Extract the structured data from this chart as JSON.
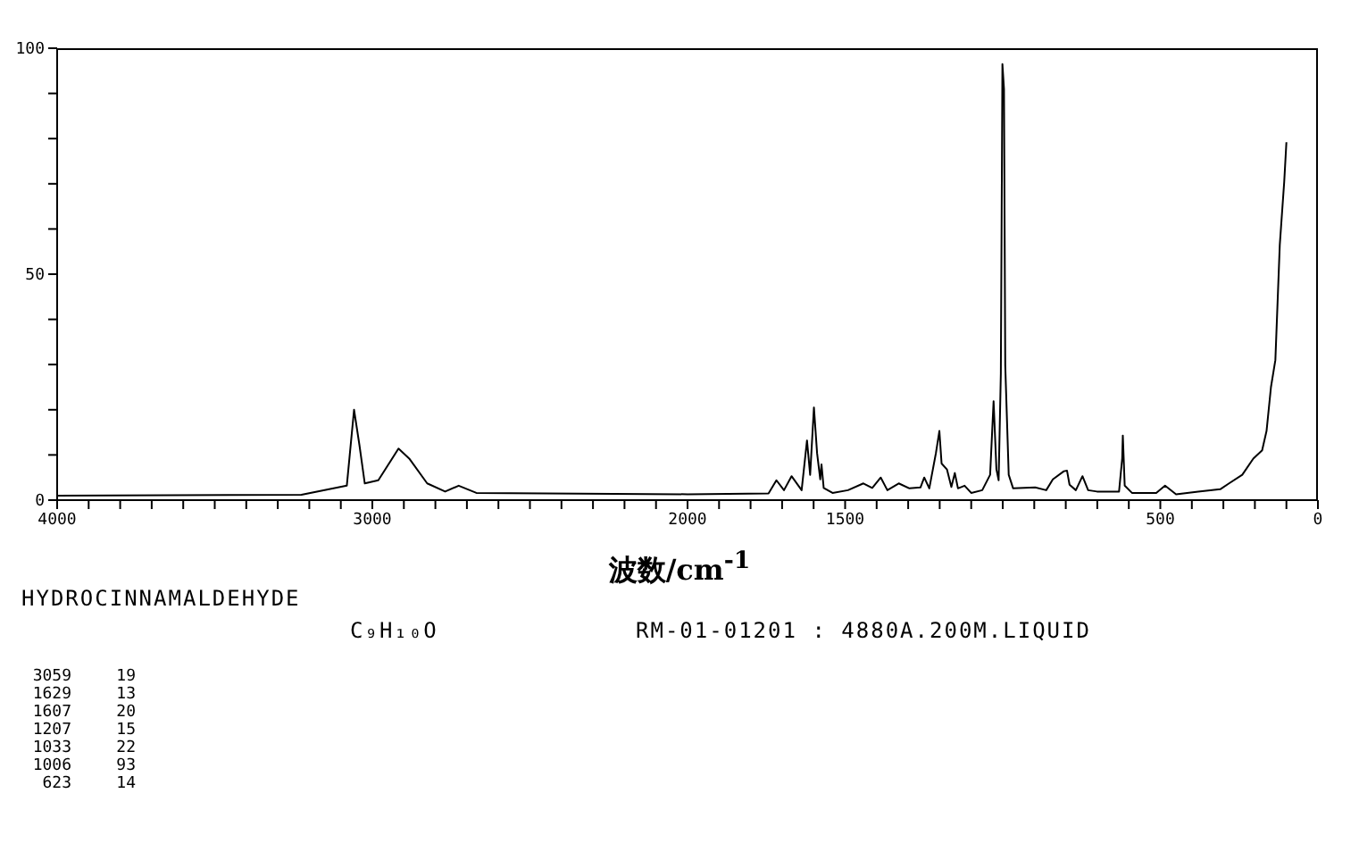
{
  "chart_data": {
    "type": "line",
    "title": "HYDROCINNAMALDEHYDE",
    "subtitle": "C₉H₁₀O",
    "xlabel": "波数/cm$^{-1}$",
    "annotations": [
      "RM-01-01201 : 4880A.200M.LIQUID",
      "3059 19",
      "1629 13",
      "1607 20",
      "1207 15",
      "1033 22",
      "1006 93",
      "623 14"
    ],
    "x": [
      4000,
      3225,
      3081,
      3058,
      3041,
      3024,
      2981,
      2917,
      2883,
      2826,
      2769,
      2726,
      2670,
      2000,
      1743,
      1718,
      1694,
      1670,
      1638,
      1621,
      1611,
      1599,
      1589,
      1579,
      1575,
      1568,
      1540,
      1491,
      1442,
      1414,
      1387,
      1366,
      1330,
      1296,
      1261,
      1249,
      1233,
      1212,
      1201,
      1194,
      1177,
      1163,
      1152,
      1142,
      1121,
      1100,
      1065,
      1040,
      1029,
      1020,
      1013,
      1006,
      1001,
      996,
      992,
      981,
      967,
      897,
      862,
      841,
      806,
      796,
      788,
      768,
      747,
      729,
      701,
      631,
      621,
      619,
      613,
      590,
      513,
      485,
      450,
      380,
      310,
      282,
      240,
      205,
      177,
      163,
      149,
      135,
      121,
      107,
      100
    ],
    "series": [
      {
        "color": "#000000",
        "values": [
          1,
          1.2,
          3.2,
          20,
          12.2,
          3.7,
          4.4,
          11.4,
          9.2,
          3.7,
          1.9,
          3.2,
          1.6,
          1.3,
          1.5,
          4.4,
          2.2,
          5.3,
          2.2,
          13.2,
          5.6,
          20.5,
          10.4,
          4.6,
          7.9,
          2.7,
          1.6,
          2.2,
          3.7,
          2.7,
          5,
          2.2,
          3.7,
          2.6,
          2.8,
          5,
          2.6,
          10.4,
          15.3,
          8.1,
          6.8,
          2.9,
          6,
          2.6,
          3.2,
          1.6,
          2.2,
          5.6,
          21.9,
          6.8,
          4.4,
          28,
          96.5,
          91,
          29.8,
          5.6,
          2.6,
          2.8,
          2.2,
          4.6,
          6.4,
          6.5,
          3.4,
          2.2,
          5.3,
          2.2,
          1.9,
          1.9,
          9.2,
          14.3,
          3.2,
          1.6,
          1.6,
          3.2,
          1.3,
          1.9,
          2.4,
          3.7,
          5.6,
          9.2,
          11,
          15.3,
          25,
          31,
          56.5,
          70.4,
          79.2
        ]
      }
    ],
    "xlim": [
      4000,
      0
    ],
    "xticks": [
      4000,
      {
        "value": 3900,
        "label": null
      },
      {
        "value": 3800,
        "label": null
      },
      {
        "value": 3700,
        "label": null
      },
      {
        "value": 3600,
        "label": null
      },
      {
        "value": 3500,
        "label": null
      },
      {
        "value": 3400,
        "label": null
      },
      {
        "value": 3300,
        "label": null
      },
      {
        "value": 3200,
        "label": null
      },
      {
        "value": 3100,
        "label": null
      },
      3000,
      {
        "value": 2900,
        "label": null
      },
      {
        "value": 2800,
        "label": null
      },
      {
        "value": 2700,
        "label": null
      },
      {
        "value": 2600,
        "label": null
      },
      {
        "value": 2500,
        "label": null
      },
      {
        "value": 2400,
        "label": null
      },
      {
        "value": 2300,
        "label": null
      },
      {
        "value": 2200,
        "label": null
      },
      {
        "value": 2100,
        "label": null
      },
      2000,
      {
        "value": 1900,
        "label": null
      },
      {
        "value": 1800,
        "label": null
      },
      {
        "value": 1700,
        "label": null
      },
      {
        "value": 1600,
        "label": null
      },
      1500,
      {
        "value": 1400,
        "label": null
      },
      {
        "value": 1300,
        "label": null
      },
      {
        "value": 1200,
        "label": null
      },
      {
        "value": 1100,
        "label": null
      },
      {
        "value": 1000,
        "label": null
      },
      {
        "value": 900,
        "label": null
      },
      {
        "value": 800,
        "label": null
      },
      {
        "value": 700,
        "label": null
      },
      {
        "value": 600,
        "label": null
      },
      500,
      {
        "value": 400,
        "label": null
      },
      {
        "value": 300,
        "label": null
      },
      {
        "value": 200,
        "label": null
      },
      {
        "value": 100,
        "label": null
      },
      0
    ],
    "ylim": [
      0,
      100
    ],
    "yticks": [
      0,
      {
        "value": 10,
        "label": null
      },
      {
        "value": 20,
        "label": null
      },
      {
        "value": 30,
        "label": null
      },
      {
        "value": 40,
        "label": null
      },
      50,
      {
        "value": 60,
        "label": null
      },
      {
        "value": 70,
        "label": null
      },
      {
        "value": 80,
        "label": null
      },
      {
        "value": 90,
        "label": null
      },
      100
    ],
    "grid": false,
    "legend": false,
    "marker": "none",
    "line_style": "solid"
  }
}
